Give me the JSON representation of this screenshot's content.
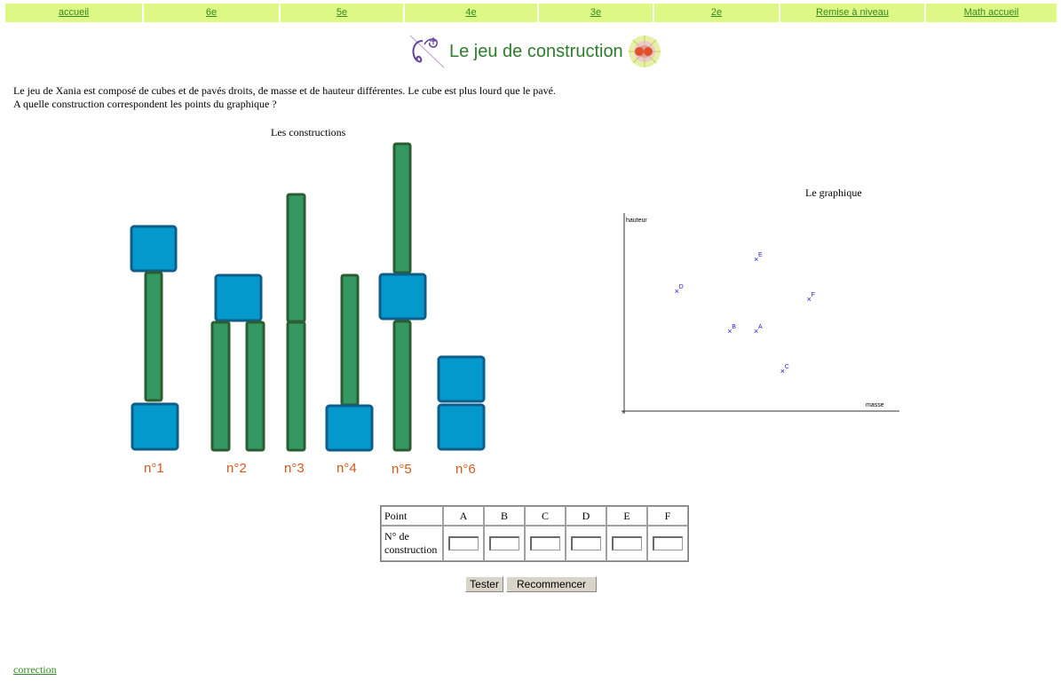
{
  "nav": [
    {
      "label": "accueil"
    },
    {
      "label": "6e"
    },
    {
      "label": "5e"
    },
    {
      "label": "4e"
    },
    {
      "label": "3e"
    },
    {
      "label": "2e"
    },
    {
      "label": "Remise à niveau"
    },
    {
      "label": "Math accueil"
    }
  ],
  "page_title": "Le jeu de construction",
  "intro": {
    "line1": "Le jeu de Xania est composé de cubes et de pavés droits, de masse et de hauteur différentes. Le cube est plus lourd que le pavé.",
    "line2": "A quelle construction correspondent les points du graphique ?"
  },
  "constructions": {
    "label": "Les constructions",
    "labels": [
      "n°1",
      "n°2",
      "n°3",
      "n°4",
      "n°5",
      "n°6"
    ]
  },
  "graph": {
    "label": "Le graphique",
    "ylabel": "hauteur",
    "xlabel": "masse",
    "points": [
      {
        "name": "A",
        "masse": 2,
        "hauteur": 2
      },
      {
        "name": "B",
        "masse": 1.6,
        "hauteur": 2
      },
      {
        "name": "C",
        "masse": 2.4,
        "hauteur": 1
      },
      {
        "name": "D",
        "masse": 0.8,
        "hauteur": 3
      },
      {
        "name": "E",
        "masse": 2,
        "hauteur": 3.8
      },
      {
        "name": "F",
        "masse": 2.8,
        "hauteur": 2.8
      }
    ]
  },
  "table": {
    "header_label": "Point",
    "row_label": "N° de construction",
    "columns": [
      "A",
      "B",
      "C",
      "D",
      "E",
      "F"
    ]
  },
  "buttons": {
    "test": "Tester",
    "reset": "Recommencer"
  },
  "correction": "correction",
  "colors": {
    "cube": "#0399cc",
    "cube_border": "#0f5e8a",
    "pave": "#359862",
    "pave_border": "#2a5e30",
    "construction_label": "#d05a1a",
    "point": "#1a1ad0"
  }
}
